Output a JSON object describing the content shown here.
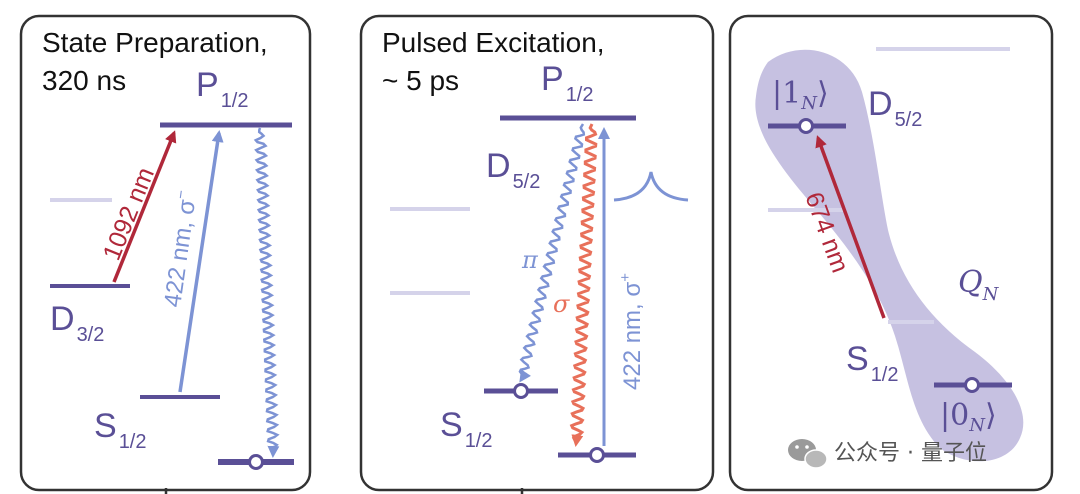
{
  "panel1": {
    "title_line1": "State Preparation,",
    "title_line2": "320 ns",
    "level_p": "P",
    "level_p_sub": "1/2",
    "level_d": "D",
    "level_d_sub": "3/2",
    "level_s": "S",
    "level_s_sub": "1/2",
    "arrow_red_label": "1092 nm",
    "arrow_blue_label": "422 nm, σ",
    "arrow_blue_sup": "−"
  },
  "panel2": {
    "title_line1": "Pulsed Excitation,",
    "title_line2": "~ 5 ps",
    "level_p": "P",
    "level_p_sub": "1/2",
    "level_d": "D",
    "level_d_sub": "5/2",
    "level_s": "S",
    "level_s_sub": "1/2",
    "pi_label": "π",
    "sigma_label": "σ",
    "arrow_label": "422 nm, σ",
    "arrow_sup": "+"
  },
  "panel3": {
    "ket1": "|1",
    "ket1_sub": "N",
    "ket0": "|0",
    "ket0_sub": "N",
    "ket_close": "⟩",
    "level_d": "D",
    "level_d_sub": "5/2",
    "level_s": "S",
    "level_s_sub": "1/2",
    "arrow_label": "674 nm",
    "qubit_label": "Q",
    "qubit_sub": "N"
  },
  "watermark": {
    "icon": "wechat-icon",
    "text": "公众号 · 量子位"
  },
  "colors": {
    "level": "#5a4f96",
    "faint_level": "#d5d3ea",
    "red": "#b0283a",
    "blue": "#7d93d4",
    "orange": "#e8705a",
    "blob": "#bcb6dc",
    "frame": "#333333"
  }
}
